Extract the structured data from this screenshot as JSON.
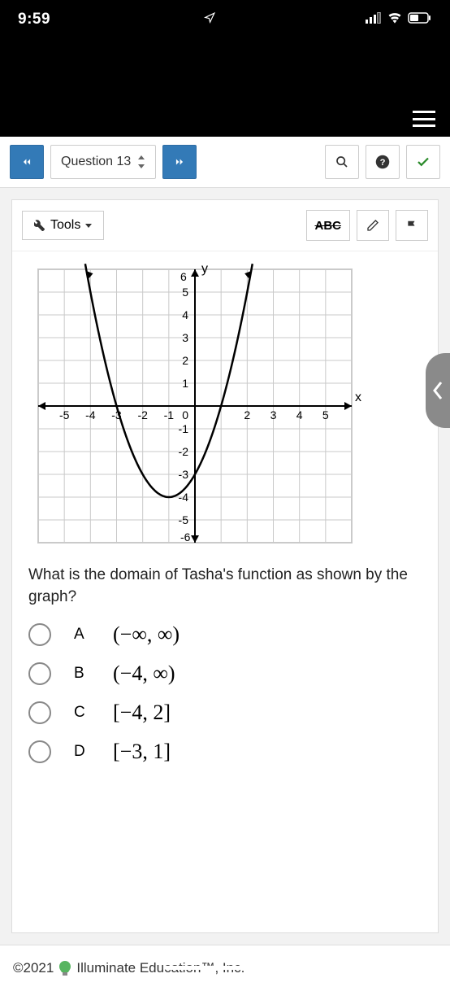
{
  "status": {
    "time": "9:59"
  },
  "toolbar": {
    "question_label": "Question 13"
  },
  "card_toolbar": {
    "tools": "Tools",
    "abc": "ABC"
  },
  "question": {
    "text": "What is the domain of Tasha's function as shown by the graph?"
  },
  "options": {
    "a": {
      "letter": "A",
      "math": "(−∞, ∞)"
    },
    "b": {
      "letter": "B",
      "math": "(−4, ∞)"
    },
    "c": {
      "letter": "C",
      "math": "[−4, 2]"
    },
    "d": {
      "letter": "D",
      "math": "[−3, 1]"
    }
  },
  "footer": {
    "copyright": "©2021",
    "company": "Illuminate Education™, Inc."
  },
  "graph": {
    "xmin": -6,
    "xmax": 6,
    "ymin": -6,
    "ymax": 6,
    "xticks": [
      -6,
      -5,
      -4,
      -3,
      -2,
      -1,
      0,
      1,
      2,
      3,
      4,
      5,
      6
    ],
    "yticks": [
      -6,
      -5,
      -4,
      -3,
      -2,
      -1,
      0,
      1,
      2,
      3,
      4,
      5,
      6
    ],
    "grid_color": "#c9c9c9",
    "axis_color": "#000",
    "curve_color": "#000",
    "curve_width": 2.5,
    "vertex": [
      -1,
      -4
    ],
    "a": 1
  }
}
